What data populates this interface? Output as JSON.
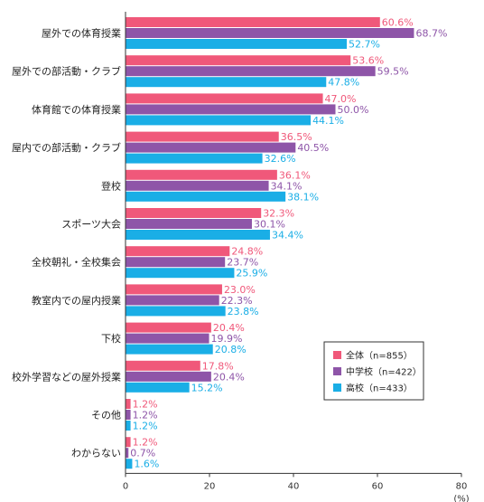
{
  "chart_data": {
    "type": "bar",
    "orientation": "horizontal",
    "categories": [
      "屋外での体育授業",
      "屋外での部活動・クラブ",
      "体育館での体育授業",
      "屋内での部活動・クラブ",
      "登校",
      "スポーツ大会",
      "全校朝礼・全校集会",
      "教室内での屋内授業",
      "下校",
      "校外学習などの屋外授業",
      "その他",
      "わからない"
    ],
    "series": [
      {
        "name": "全体（n=855）",
        "color": "#f0587a",
        "values": [
          60.6,
          53.6,
          47.0,
          36.5,
          36.1,
          32.3,
          24.8,
          23.0,
          20.4,
          17.8,
          1.2,
          1.2
        ],
        "labels": [
          "60.6%",
          "53.6%",
          "47.0%",
          "36.5%",
          "36.1%",
          "32.3%",
          "24.8%",
          "23.0%",
          "20.4%",
          "17.8%",
          "1.2%",
          "1.2%"
        ]
      },
      {
        "name": "中学校（n=422）",
        "color": "#8e55a8",
        "values": [
          68.7,
          59.5,
          50.0,
          40.5,
          34.1,
          30.1,
          23.7,
          22.3,
          19.9,
          20.4,
          1.2,
          0.7
        ],
        "labels": [
          "68.7%",
          "59.5%",
          "50.0%",
          "40.5%",
          "34.1%",
          "30.1%",
          "23.7%",
          "22.3%",
          "19.9%",
          "20.4%",
          "1.2%",
          "0.7%"
        ]
      },
      {
        "name": "高校（n=433）",
        "color": "#1aaee6",
        "values": [
          52.7,
          47.8,
          44.1,
          32.6,
          38.1,
          34.4,
          25.9,
          23.8,
          20.8,
          15.2,
          1.2,
          1.6
        ],
        "labels": [
          "52.7%",
          "47.8%",
          "44.1%",
          "32.6%",
          "38.1%",
          "34.4%",
          "25.9%",
          "23.8%",
          "20.8%",
          "15.2%",
          "1.2%",
          "1.6%"
        ]
      }
    ],
    "x_ticks": [
      "0",
      "20",
      "40",
      "60",
      "80"
    ],
    "xlim": [
      0,
      80
    ],
    "x_unit": "(%)",
    "grid": false,
    "legend_position": "bottom-right"
  }
}
